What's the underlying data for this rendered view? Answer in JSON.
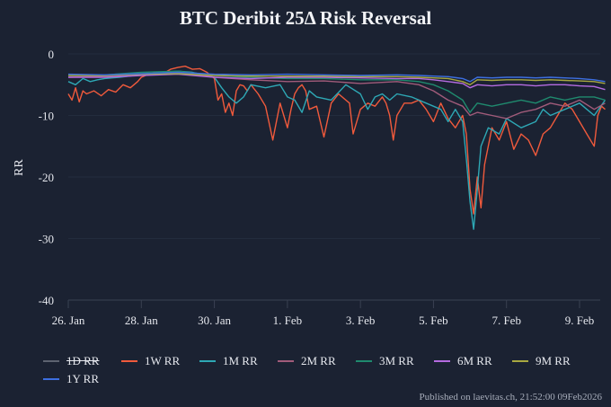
{
  "chart_data": {
    "type": "line",
    "title": "BTC Deribit 25Δ Risk Reversal",
    "xlabel": "",
    "ylabel": "RR",
    "ylim": [
      -40,
      0
    ],
    "xlim_days_from_26jan": [
      0,
      14.7
    ],
    "grid": true,
    "legend_position": "bottom",
    "yticks": [
      0,
      -10,
      -20,
      -30,
      -40
    ],
    "yticklabels": [
      "0",
      "-10",
      "-20",
      "-30",
      "-40"
    ],
    "xticks": [
      0,
      2,
      4,
      6,
      8,
      10,
      12,
      14
    ],
    "xticklabels": [
      "26. Jan",
      "28. Jan",
      "30. Jan",
      "1. Feb",
      "3. Feb",
      "5. Feb",
      "7. Feb",
      "9. Feb"
    ],
    "series": [
      {
        "name": "1D RR",
        "color": "#8a8f99",
        "hidden": true,
        "x": [],
        "y": []
      },
      {
        "name": "1W RR",
        "color": "#f05a3c",
        "hidden": false,
        "x": [
          0.0,
          0.1,
          0.2,
          0.3,
          0.4,
          0.5,
          0.7,
          0.9,
          1.1,
          1.3,
          1.5,
          1.7,
          1.9,
          2.0,
          2.2,
          2.4,
          2.6,
          2.8,
          3.0,
          3.2,
          3.4,
          3.6,
          3.8,
          4.0,
          4.1,
          4.2,
          4.3,
          4.4,
          4.5,
          4.6,
          4.7,
          4.8,
          4.9,
          5.0,
          5.2,
          5.4,
          5.6,
          5.8,
          5.9,
          6.0,
          6.1,
          6.2,
          6.3,
          6.4,
          6.5,
          6.6,
          6.8,
          7.0,
          7.2,
          7.4,
          7.5,
          7.6,
          7.7,
          7.8,
          8.0,
          8.2,
          8.4,
          8.6,
          8.7,
          8.8,
          8.9,
          9.0,
          9.2,
          9.4,
          9.6,
          9.8,
          10.0,
          10.2,
          10.4,
          10.6,
          10.8,
          10.9,
          11.0,
          11.1,
          11.2,
          11.3,
          11.4,
          11.5,
          11.6,
          11.8,
          12.0,
          12.2,
          12.4,
          12.6,
          12.8,
          13.0,
          13.2,
          13.4,
          13.6,
          13.8,
          14.0,
          14.2,
          14.4,
          14.5,
          14.6,
          14.7
        ],
        "y": [
          -6.5,
          -7.5,
          -5.5,
          -7.8,
          -6.0,
          -6.5,
          -6.0,
          -6.8,
          -5.8,
          -6.2,
          -5.0,
          -5.5,
          -4.5,
          -3.8,
          -3.3,
          -3.0,
          -3.2,
          -2.5,
          -2.2,
          -2.0,
          -2.5,
          -2.4,
          -3.0,
          -4.0,
          -7.5,
          -6.5,
          -9.5,
          -8.0,
          -10.0,
          -6.0,
          -5.0,
          -5.2,
          -6.0,
          -5.0,
          -6.5,
          -8.5,
          -14.0,
          -8.0,
          -10.0,
          -12.0,
          -9.0,
          -6.5,
          -5.5,
          -5.0,
          -6.0,
          -9.0,
          -8.5,
          -13.5,
          -8.0,
          -6.5,
          -7.0,
          -7.5,
          -8.0,
          -13.0,
          -9.0,
          -8.0,
          -8.5,
          -7.0,
          -8.0,
          -10.0,
          -14.0,
          -10.0,
          -8.0,
          -8.0,
          -7.5,
          -9.0,
          -11.0,
          -8.0,
          -10.5,
          -12.0,
          -10.0,
          -13.0,
          -22.0,
          -26.0,
          -20.0,
          -25.0,
          -18.0,
          -15.0,
          -12.0,
          -14.0,
          -11.0,
          -15.5,
          -13.0,
          -14.0,
          -16.5,
          -13.0,
          -12.0,
          -10.0,
          -8.0,
          -9.0,
          -11.0,
          -13.0,
          -15.0,
          -10.0,
          -8.5,
          -9.0
        ]
      },
      {
        "name": "1M RR",
        "color": "#2ea8b5",
        "hidden": false,
        "x": [
          0.0,
          0.2,
          0.4,
          0.6,
          0.8,
          1.0,
          1.4,
          1.8,
          2.2,
          2.6,
          3.0,
          3.4,
          3.8,
          4.0,
          4.2,
          4.4,
          4.6,
          4.8,
          5.0,
          5.4,
          5.8,
          6.0,
          6.2,
          6.4,
          6.6,
          6.8,
          7.2,
          7.6,
          8.0,
          8.2,
          8.4,
          8.6,
          8.8,
          9.0,
          9.4,
          9.8,
          10.2,
          10.4,
          10.6,
          10.8,
          10.9,
          11.0,
          11.1,
          11.2,
          11.3,
          11.5,
          11.8,
          12.0,
          12.4,
          12.8,
          13.0,
          13.2,
          13.6,
          14.0,
          14.4,
          14.7
        ],
        "y": [
          -4.5,
          -5.0,
          -4.0,
          -4.5,
          -4.2,
          -4.0,
          -3.8,
          -3.5,
          -3.3,
          -3.0,
          -2.8,
          -3.0,
          -3.5,
          -3.8,
          -5.5,
          -7.0,
          -8.0,
          -7.0,
          -5.0,
          -5.5,
          -5.0,
          -7.0,
          -7.5,
          -9.5,
          -6.0,
          -7.0,
          -7.5,
          -5.0,
          -6.5,
          -9.0,
          -7.0,
          -6.5,
          -7.5,
          -6.5,
          -7.0,
          -8.0,
          -9.0,
          -11.0,
          -9.0,
          -11.0,
          -17.0,
          -24.0,
          -28.5,
          -22.0,
          -15.0,
          -12.0,
          -13.0,
          -10.5,
          -12.0,
          -11.0,
          -9.0,
          -10.0,
          -9.0,
          -8.0,
          -10.0,
          -7.5
        ]
      },
      {
        "name": "2M RR",
        "color": "#a15b7a",
        "hidden": false,
        "x": [
          0.0,
          1.0,
          2.0,
          3.0,
          4.0,
          5.0,
          6.0,
          7.0,
          8.0,
          9.0,
          9.6,
          10.0,
          10.4,
          10.8,
          11.0,
          11.2,
          11.6,
          12.0,
          12.4,
          12.8,
          13.2,
          13.6,
          14.0,
          14.4,
          14.7
        ],
        "y": [
          -3.8,
          -3.6,
          -3.3,
          -3.0,
          -3.8,
          -4.2,
          -4.5,
          -4.4,
          -4.8,
          -4.5,
          -5.0,
          -6.0,
          -7.5,
          -8.5,
          -10.0,
          -9.5,
          -10.0,
          -10.5,
          -9.5,
          -9.0,
          -8.0,
          -8.5,
          -7.5,
          -9.0,
          -8.0
        ]
      },
      {
        "name": "3M RR",
        "color": "#1f8a6e",
        "hidden": false,
        "x": [
          0.0,
          1.0,
          2.0,
          3.0,
          4.0,
          5.0,
          6.0,
          7.0,
          8.0,
          9.0,
          9.6,
          10.0,
          10.4,
          10.8,
          11.0,
          11.2,
          11.6,
          12.0,
          12.4,
          12.8,
          13.2,
          13.6,
          14.0,
          14.4,
          14.7
        ],
        "y": [
          -3.5,
          -3.4,
          -3.0,
          -2.8,
          -3.5,
          -3.8,
          -4.0,
          -4.0,
          -4.2,
          -4.2,
          -4.5,
          -5.0,
          -6.0,
          -7.5,
          -9.5,
          -8.0,
          -8.5,
          -8.0,
          -7.5,
          -8.0,
          -7.0,
          -7.5,
          -7.0,
          -7.0,
          -7.5
        ]
      },
      {
        "name": "6M RR",
        "color": "#b56be0",
        "hidden": false,
        "x": [
          0.0,
          1.0,
          2.0,
          3.0,
          4.0,
          5.0,
          6.0,
          7.0,
          8.0,
          9.0,
          9.6,
          10.0,
          10.4,
          10.8,
          11.0,
          11.2,
          11.6,
          12.0,
          12.4,
          12.8,
          13.2,
          13.6,
          14.0,
          14.4,
          14.7
        ],
        "y": [
          -3.8,
          -3.8,
          -3.5,
          -3.3,
          -3.8,
          -4.0,
          -3.8,
          -3.8,
          -3.9,
          -4.0,
          -4.0,
          -4.2,
          -4.5,
          -4.8,
          -5.5,
          -5.0,
          -5.2,
          -5.0,
          -5.0,
          -5.2,
          -5.0,
          -5.0,
          -5.2,
          -5.3,
          -5.8
        ]
      },
      {
        "name": "9M RR",
        "color": "#a8a840",
        "hidden": false,
        "x": [
          0.0,
          1.0,
          2.0,
          3.0,
          4.0,
          5.0,
          6.0,
          7.0,
          8.0,
          9.0,
          9.6,
          10.0,
          10.4,
          10.8,
          11.0,
          11.2,
          11.6,
          12.0,
          12.4,
          12.8,
          13.2,
          13.6,
          14.0,
          14.4,
          14.7
        ],
        "y": [
          -3.5,
          -3.5,
          -3.3,
          -3.2,
          -3.5,
          -3.6,
          -3.6,
          -3.6,
          -3.7,
          -3.7,
          -3.8,
          -3.9,
          -4.0,
          -4.5,
          -5.0,
          -4.2,
          -4.3,
          -4.2,
          -4.2,
          -4.3,
          -4.2,
          -4.3,
          -4.4,
          -4.5,
          -4.8
        ]
      },
      {
        "name": "1Y RR",
        "color": "#3d6fe0",
        "hidden": false,
        "x": [
          0.0,
          1.0,
          2.0,
          3.0,
          4.0,
          5.0,
          6.0,
          7.0,
          8.0,
          9.0,
          9.6,
          10.0,
          10.4,
          10.8,
          11.0,
          11.2,
          11.6,
          12.0,
          12.4,
          12.8,
          13.2,
          13.6,
          14.0,
          14.4,
          14.7
        ],
        "y": [
          -3.3,
          -3.4,
          -3.2,
          -3.0,
          -3.3,
          -3.4,
          -3.3,
          -3.4,
          -3.5,
          -3.4,
          -3.5,
          -3.6,
          -3.7,
          -4.0,
          -4.5,
          -3.8,
          -3.9,
          -3.8,
          -3.8,
          -3.9,
          -3.8,
          -3.9,
          -4.0,
          -4.2,
          -4.5
        ]
      }
    ]
  },
  "legend": {
    "items": [
      {
        "label": "1D RR",
        "color": "#8a8f99",
        "hidden": true
      },
      {
        "label": "1W RR",
        "color": "#f05a3c",
        "hidden": false
      },
      {
        "label": "1M RR",
        "color": "#2ea8b5",
        "hidden": false
      },
      {
        "label": "2M RR",
        "color": "#a15b7a",
        "hidden": false
      },
      {
        "label": "3M RR",
        "color": "#1f8a6e",
        "hidden": false
      },
      {
        "label": "6M RR",
        "color": "#b56be0",
        "hidden": false
      },
      {
        "label": "9M RR",
        "color": "#a8a840",
        "hidden": false
      },
      {
        "label": "1Y RR",
        "color": "#3d6fe0",
        "hidden": false
      }
    ]
  },
  "footer": {
    "text": "Published on laevitas.ch, 21:52:00 09Feb2026"
  }
}
